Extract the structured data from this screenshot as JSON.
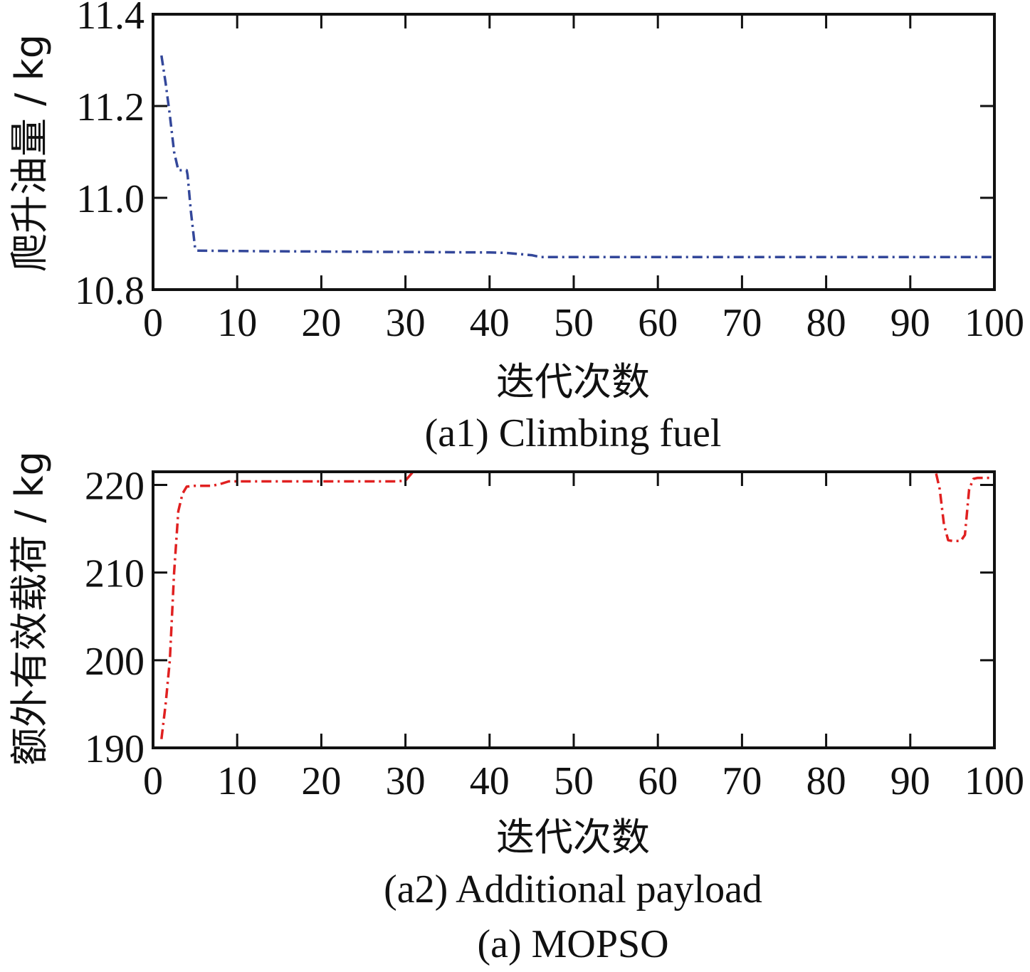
{
  "chart_data": [
    {
      "type": "line",
      "caption": "(a1) Climbing fuel",
      "xlabel": "迭代次数",
      "ylabel": "爬升油量 / kg",
      "xlim": [
        0,
        100
      ],
      "ylim": [
        10.8,
        11.4
      ],
      "xticks": [
        0,
        10,
        20,
        30,
        40,
        50,
        60,
        70,
        80,
        90,
        100
      ],
      "yticks": [
        "10.8",
        "11.0",
        "11.2",
        "11.4"
      ],
      "grid": false,
      "series": [
        {
          "color": "#33479a",
          "dash": "dash-dot",
          "x": [
            1,
            1.5,
            2,
            2.5,
            3,
            3.5,
            4,
            4.1,
            4.5,
            5,
            5.2,
            10,
            20,
            30,
            40,
            42,
            45,
            46,
            50,
            60,
            70,
            80,
            90,
            100
          ],
          "y": [
            11.31,
            11.25,
            11.18,
            11.1,
            11.06,
            11.06,
            11.06,
            11.05,
            10.97,
            10.89,
            10.885,
            10.884,
            10.883,
            10.882,
            10.881,
            10.88,
            10.875,
            10.871,
            10.871,
            10.871,
            10.871,
            10.871,
            10.871,
            10.871
          ]
        }
      ]
    },
    {
      "type": "line",
      "caption": "(a2) Additional payload",
      "xlabel": "迭代次数",
      "ylabel": "额外有效载荷 / kg",
      "xlim": [
        0,
        100
      ],
      "ylim": [
        190,
        221.5
      ],
      "xticks": [
        0,
        10,
        20,
        30,
        40,
        50,
        60,
        70,
        80,
        90,
        100
      ],
      "yticks": [
        "190",
        "200",
        "210",
        "220"
      ],
      "grid": false,
      "series": [
        {
          "color": "#e02020",
          "dash": "dash-dot",
          "x": [
            1,
            1.5,
            2,
            2.5,
            3,
            3.5,
            4,
            5,
            7,
            8,
            9,
            10,
            20,
            29,
            30,
            31,
            93,
            93.5,
            94,
            94.5,
            95,
            96,
            96.5,
            97,
            97.5,
            98,
            100
          ],
          "y": [
            191,
            195,
            200,
            210,
            217,
            219,
            219.8,
            219.9,
            219.9,
            220.1,
            220.4,
            220.4,
            220.4,
            220.4,
            220.5,
            221.6,
            221.6,
            219.5,
            215.5,
            213.7,
            213.6,
            213.6,
            214.3,
            219.5,
            220.7,
            220.8,
            220.8
          ]
        }
      ]
    }
  ],
  "figure_caption": "(a) MOPSO"
}
